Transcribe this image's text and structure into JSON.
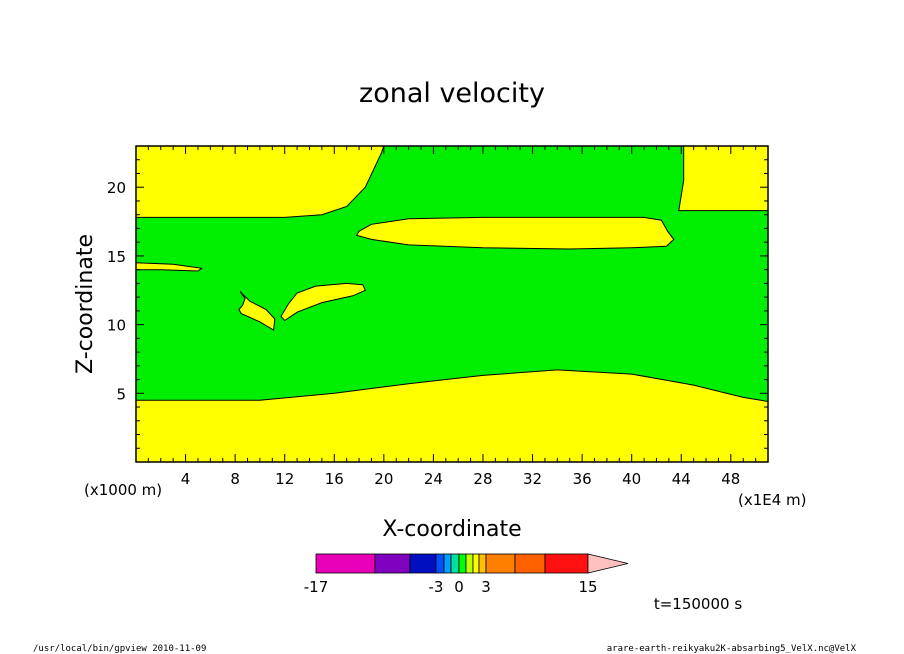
{
  "chart_data": {
    "type": "heatmap",
    "title": "zonal velocity",
    "xlabel": "X-coordinate",
    "ylabel": "Z-coordinate",
    "x_unit_left": "(x1000 m)",
    "x_unit_right": "(x1E4 m)",
    "xlim": [
      0,
      51
    ],
    "ylim": [
      0,
      23
    ],
    "x_ticks": [
      "4",
      "8",
      "12",
      "16",
      "20",
      "24",
      "28",
      "32",
      "36",
      "40",
      "44",
      "48"
    ],
    "y_ticks": [
      "5",
      "10",
      "15",
      "20"
    ],
    "colors": {
      "fill_low": "#ffff00",
      "fill_high": "#00ee00",
      "outline": "#000000"
    },
    "colorbar": {
      "labels": [
        "-17",
        "-3",
        "0",
        "3",
        "15"
      ],
      "colors": [
        "#e800b8",
        "#8000c0",
        "#0010c0",
        "#0050ff",
        "#00a0ff",
        "#00e0a0",
        "#00ff00",
        "#c0ff00",
        "#ffff00",
        "#ffc000",
        "#ff8000",
        "#ff6000",
        "#ff1010",
        "#ff8070",
        "#ffc0c0"
      ]
    },
    "time_label": "t=150000 s",
    "regions": [
      {
        "level": "yellow",
        "points": [
          [
            0,
            4.5
          ],
          [
            10,
            4.5
          ],
          [
            16,
            5
          ],
          [
            22,
            5.7
          ],
          [
            28,
            6.3
          ],
          [
            34,
            6.7
          ],
          [
            40,
            6.4
          ],
          [
            45,
            5.6
          ],
          [
            49,
            4.7
          ],
          [
            51,
            4.4
          ],
          [
            51,
            0
          ],
          [
            0,
            0
          ]
        ]
      },
      {
        "level": "yellow",
        "points": [
          [
            0,
            23
          ],
          [
            0,
            17.8
          ],
          [
            12,
            17.8
          ],
          [
            15,
            18
          ],
          [
            17,
            18.6
          ],
          [
            18.5,
            20
          ],
          [
            19.8,
            22.5
          ],
          [
            20,
            23
          ]
        ]
      },
      {
        "level": "yellow",
        "points": [
          [
            44.2,
            23
          ],
          [
            44.2,
            20.5
          ],
          [
            43.8,
            18.3
          ],
          [
            51,
            18.3
          ],
          [
            51,
            23
          ]
        ]
      },
      {
        "level": "yellow",
        "points": [
          [
            18,
            16.8
          ],
          [
            19,
            17.3
          ],
          [
            22,
            17.7
          ],
          [
            28,
            17.8
          ],
          [
            35,
            17.8
          ],
          [
            41,
            17.8
          ],
          [
            42.4,
            17.6
          ],
          [
            42.9,
            16.8
          ],
          [
            43.4,
            16.2
          ],
          [
            42.8,
            15.7
          ],
          [
            40,
            15.6
          ],
          [
            35,
            15.5
          ],
          [
            28,
            15.6
          ],
          [
            22,
            15.8
          ],
          [
            19,
            16.2
          ],
          [
            17.8,
            16.5
          ]
        ]
      },
      {
        "level": "yellow",
        "points": [
          [
            0,
            14.5
          ],
          [
            3,
            14.4
          ],
          [
            5.3,
            14.1
          ],
          [
            5,
            13.9
          ],
          [
            2,
            14
          ],
          [
            0,
            14
          ]
        ]
      },
      {
        "level": "yellow",
        "points": [
          [
            12.3,
            11.5
          ],
          [
            13,
            12.3
          ],
          [
            14.5,
            12.8
          ],
          [
            17,
            13
          ],
          [
            18.3,
            12.9
          ],
          [
            18.5,
            12.5
          ],
          [
            17.5,
            12.1
          ],
          [
            15,
            11.6
          ],
          [
            13,
            10.9
          ],
          [
            12,
            10.3
          ],
          [
            11.7,
            10.6
          ]
        ]
      },
      {
        "level": "yellow",
        "points": [
          [
            8.4,
            12.4
          ],
          [
            9.2,
            11.7
          ],
          [
            10.5,
            11.1
          ],
          [
            11.2,
            10.4
          ],
          [
            11.1,
            9.6
          ],
          [
            10,
            10.2
          ],
          [
            8.5,
            10.8
          ],
          [
            8.3,
            11.1
          ],
          [
            8.6,
            11.4
          ],
          [
            8.8,
            11.9
          ]
        ]
      }
    ]
  },
  "footer": {
    "left": "/usr/local/bin/gpview  2010-11-09",
    "right": "arare-earth-reikyaku2K-absarbing5_VelX.nc@VelX"
  }
}
